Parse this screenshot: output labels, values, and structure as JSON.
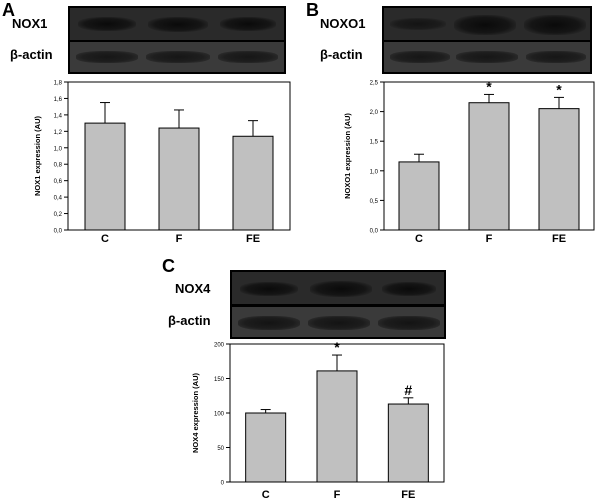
{
  "panels": {
    "A": {
      "letter": "A",
      "blot_labels": [
        "NOX1",
        "β-actin"
      ]
    },
    "B": {
      "letter": "B",
      "blot_labels": [
        "NOXO1",
        "β-actin"
      ]
    },
    "C": {
      "letter": "C",
      "blot_labels": [
        "NOX4",
        "β-actin"
      ]
    }
  },
  "colors": {
    "bar_fill": "#c0c0c0",
    "bar_stroke": "#000000",
    "blot_bg": "#2a2a2a"
  },
  "chart_data": [
    {
      "type": "bar",
      "panel": "A",
      "categories": [
        "C",
        "F",
        "FE"
      ],
      "values": [
        1.3,
        1.24,
        1.14
      ],
      "errors": [
        0.25,
        0.22,
        0.19
      ],
      "markers": [
        "",
        "",
        ""
      ],
      "ylabel": "NOX1 expression (AU)",
      "ylim": [
        0,
        1.8
      ],
      "yticks": [
        0.0,
        0.2,
        0.4,
        0.6,
        0.8,
        1.0,
        1.2,
        1.4,
        1.6,
        1.8
      ],
      "ytick_labels": [
        "0,0",
        "0,2",
        "0,4",
        "0,6",
        "0,8",
        "1,0",
        "1,2",
        "1,4",
        "1,6",
        "1,8"
      ]
    },
    {
      "type": "bar",
      "panel": "B",
      "categories": [
        "C",
        "F",
        "FE"
      ],
      "values": [
        1.15,
        2.15,
        2.05
      ],
      "errors": [
        0.13,
        0.14,
        0.19
      ],
      "markers": [
        "",
        "*",
        "*"
      ],
      "ylabel": "NOXO1 expression (AU)",
      "ylim": [
        0,
        2.5
      ],
      "yticks": [
        0.0,
        0.5,
        1.0,
        1.5,
        2.0,
        2.5
      ],
      "ytick_labels": [
        "0,0",
        "0,5",
        "1,0",
        "1,5",
        "2,0",
        "2,5"
      ]
    },
    {
      "type": "bar",
      "panel": "C",
      "categories": [
        "C",
        "F",
        "FE"
      ],
      "values": [
        100,
        161,
        113
      ],
      "errors": [
        5,
        23,
        9
      ],
      "markers": [
        "",
        "*",
        "#"
      ],
      "ylabel": "NOX4 expression (AU)",
      "ylim": [
        0,
        200
      ],
      "yticks": [
        0,
        50,
        100,
        150,
        200
      ],
      "ytick_labels": [
        "0",
        "50",
        "100",
        "150",
        "200"
      ]
    }
  ]
}
